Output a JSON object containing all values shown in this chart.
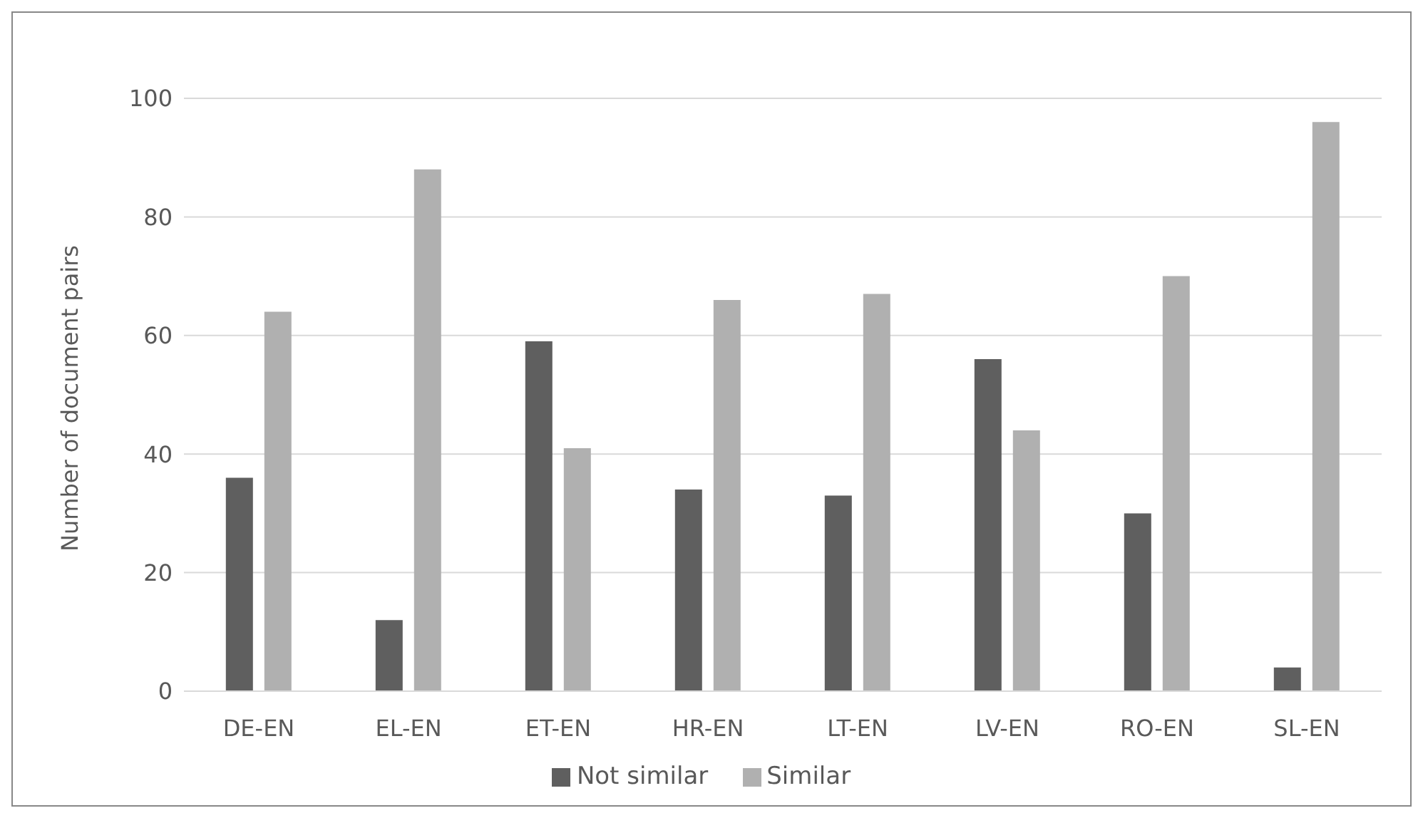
{
  "chart_data": {
    "type": "bar",
    "ylabel": "Number of document pairs",
    "categories": [
      "DE-EN",
      "EL-EN",
      "ET-EN",
      "HR-EN",
      "LT-EN",
      "LV-EN",
      "RO-EN",
      "SL-EN"
    ],
    "series": [
      {
        "name": "Not similar",
        "color": "#5f5f5f",
        "values": [
          36,
          12,
          59,
          34,
          33,
          56,
          30,
          4
        ]
      },
      {
        "name": "Similar",
        "color": "#b0b0b0",
        "values": [
          64,
          88,
          41,
          66,
          67,
          44,
          70,
          96
        ]
      }
    ],
    "ylim": [
      0,
      100
    ],
    "yticks": [
      0,
      20,
      40,
      60,
      80,
      100
    ],
    "grid": "y",
    "legend": "bottom"
  }
}
